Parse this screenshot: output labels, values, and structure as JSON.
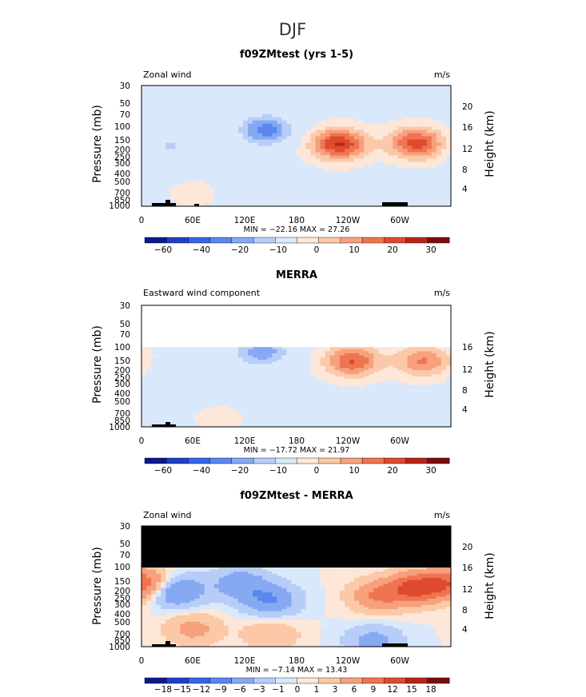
{
  "figure": {
    "title": "DJF"
  },
  "chart_data": [
    {
      "type": "heatmap",
      "title": "f09ZMtest (yrs 1-5)",
      "left_label": "Zonal wind",
      "units": "m/s",
      "ylabel": "Pressure (mb)",
      "ylabel2": "Height (km)",
      "yticks": [
        "30",
        "50",
        "70",
        "100",
        "150",
        "200",
        "250",
        "300",
        "400",
        "500",
        "700",
        "850",
        "1000"
      ],
      "height_ticks": [
        "20",
        "16",
        "12",
        "8",
        "4"
      ],
      "xticks": [
        "0",
        "60E",
        "120E",
        "180",
        "120W",
        "60W"
      ],
      "stats": "MIN = −22.16   MAX =  27.26",
      "colorbar_labels": [
        "−60",
        "−40",
        "−20",
        "−10",
        "0",
        "10",
        "20",
        "30"
      ],
      "blobs": [
        {
          "lon": 145,
          "p": 110,
          "value": -21
        },
        {
          "lon": 35,
          "p": 175,
          "value": -9
        },
        {
          "lon": 230,
          "p": 165,
          "value": 27
        },
        {
          "lon": 320,
          "p": 160,
          "value": 24
        },
        {
          "lon": 60,
          "p": 700,
          "value": 3
        }
      ]
    },
    {
      "type": "heatmap",
      "title": "MERRA",
      "left_label": "Eastward wind component",
      "units": "m/s",
      "ylabel": "Pressure (mb)",
      "ylabel2": "Height (km)",
      "yticks": [
        "30",
        "50",
        "70",
        "100",
        "150",
        "200",
        "250",
        "300",
        "400",
        "500",
        "700",
        "850",
        "1000"
      ],
      "height_ticks": [
        "16",
        "12",
        "8",
        "4"
      ],
      "xticks": [
        "0",
        "60E",
        "120E",
        "180",
        "120W",
        "60W"
      ],
      "stats": "MIN = −17.72   MAX =  21.97",
      "colorbar_labels": [
        "−60",
        "−40",
        "−20",
        "−10",
        "0",
        "10",
        "20",
        "30"
      ],
      "blobs": [
        {
          "lon": 140,
          "p": 115,
          "value": -17
        },
        {
          "lon": 245,
          "p": 150,
          "value": 22
        },
        {
          "lon": 328,
          "p": 150,
          "value": 17
        },
        {
          "lon": 50,
          "p": 220,
          "value": -6
        },
        {
          "lon": 90,
          "p": 800,
          "value": 3
        }
      ]
    },
    {
      "type": "heatmap",
      "title": "f09ZMtest - MERRA",
      "left_label": "Zonal wind",
      "units": "m/s",
      "ylabel": "Pressure (mb)",
      "ylabel2": "Height (km)",
      "yticks": [
        "30",
        "50",
        "70",
        "100",
        "150",
        "200",
        "250",
        "300",
        "400",
        "500",
        "700",
        "850",
        "1000"
      ],
      "height_ticks": [
        "20",
        "16",
        "12",
        "8",
        "4"
      ],
      "xticks": [
        "0",
        "60E",
        "120E",
        "180",
        "120W",
        "60W"
      ],
      "stats": "MIN =  −7.14   MAX =  13.43",
      "colorbar_labels": [
        "−18",
        "−15",
        "−12",
        "−9",
        "−6",
        "−3",
        "−1",
        "0",
        "1",
        "3",
        "6",
        "9",
        "12",
        "15",
        "18"
      ],
      "blobs": [
        {
          "lon": 40,
          "p": 200,
          "value": -7
        },
        {
          "lon": 150,
          "p": 260,
          "value": -6
        },
        {
          "lon": 115,
          "p": 160,
          "value": -5
        },
        {
          "lon": 320,
          "p": 180,
          "value": 10
        },
        {
          "lon": 275,
          "p": 230,
          "value": 6
        },
        {
          "lon": 3,
          "p": 160,
          "value": 8
        },
        {
          "lon": 60,
          "p": 600,
          "value": 4
        },
        {
          "lon": 150,
          "p": 700,
          "value": 3
        },
        {
          "lon": 270,
          "p": 850,
          "value": -4
        }
      ]
    }
  ]
}
